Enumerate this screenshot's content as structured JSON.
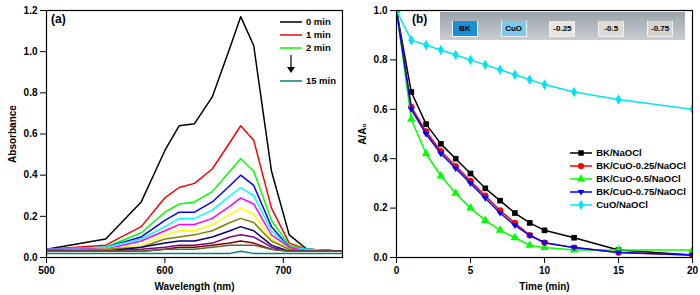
{
  "chart_data": [
    {
      "type": "line",
      "title": "(a)",
      "xlabel": "Wavelength (nm)",
      "ylabel": "Absorbance",
      "x": [
        500,
        550,
        580,
        600,
        612,
        625,
        640,
        655,
        664,
        675,
        690,
        705,
        720,
        750
      ],
      "xlim": [
        500,
        750
      ],
      "xticks": [
        500,
        600,
        700
      ],
      "ylim": [
        0,
        1.2
      ],
      "yticks": [
        {
          "value": 0,
          "label": "0.0"
        },
        0.2,
        0.4,
        0.6,
        0.8,
        {
          "value": 1,
          "label": "1.0"
        },
        1.2
      ],
      "legend": "top-right",
      "series": [
        {
          "name": "0 min",
          "color": "#000000",
          "values": [
            0.04,
            0.09,
            0.27,
            0.52,
            0.64,
            0.65,
            0.78,
            1.02,
            1.17,
            1.03,
            0.42,
            0.11,
            0.04,
            0.03
          ]
        },
        {
          "name": "1 min",
          "color": "#ff0000",
          "values": [
            0.04,
            0.06,
            0.15,
            0.29,
            0.34,
            0.36,
            0.43,
            0.56,
            0.64,
            0.57,
            0.24,
            0.07,
            0.04,
            0.03
          ]
        },
        {
          "name": "2 min",
          "color": "#00ff00",
          "values": [
            0.04,
            0.05,
            0.12,
            0.22,
            0.26,
            0.27,
            0.32,
            0.42,
            0.48,
            0.42,
            0.18,
            0.06,
            0.04,
            0.03
          ]
        },
        {
          "color": "#0000ff",
          "values": [
            0.04,
            0.05,
            0.1,
            0.18,
            0.22,
            0.22,
            0.27,
            0.35,
            0.4,
            0.35,
            0.15,
            0.05,
            0.04,
            0.03
          ]
        },
        {
          "color": "#00ffff",
          "values": [
            0.04,
            0.05,
            0.09,
            0.15,
            0.19,
            0.19,
            0.23,
            0.3,
            0.34,
            0.3,
            0.13,
            0.05,
            0.04,
            0.03
          ]
        },
        {
          "color": "#ff00ff",
          "values": [
            0.04,
            0.04,
            0.08,
            0.13,
            0.16,
            0.16,
            0.19,
            0.25,
            0.29,
            0.26,
            0.11,
            0.05,
            0.03,
            0.03
          ]
        },
        {
          "color": "#ffff00",
          "values": [
            0.03,
            0.04,
            0.06,
            0.11,
            0.13,
            0.13,
            0.16,
            0.21,
            0.24,
            0.21,
            0.09,
            0.04,
            0.03,
            0.03
          ]
        },
        {
          "color": "#808000",
          "values": [
            0.03,
            0.04,
            0.05,
            0.09,
            0.1,
            0.11,
            0.13,
            0.17,
            0.19,
            0.17,
            0.08,
            0.04,
            0.03,
            0.03
          ]
        },
        {
          "color": "#000080",
          "values": [
            0.03,
            0.03,
            0.05,
            0.07,
            0.08,
            0.08,
            0.1,
            0.13,
            0.15,
            0.13,
            0.06,
            0.03,
            0.03,
            0.03
          ]
        },
        {
          "color": "#800080",
          "values": [
            0.03,
            0.03,
            0.04,
            0.05,
            0.06,
            0.06,
            0.07,
            0.1,
            0.11,
            0.1,
            0.05,
            0.03,
            0.03,
            0.03
          ]
        },
        {
          "color": "#800000",
          "values": [
            0.03,
            0.03,
            0.03,
            0.04,
            0.05,
            0.05,
            0.06,
            0.07,
            0.08,
            0.07,
            0.04,
            0.03,
            0.03,
            0.03
          ]
        },
        {
          "color": "#556b2f",
          "values": [
            0.03,
            0.03,
            0.03,
            0.04,
            0.04,
            0.04,
            0.05,
            0.06,
            0.06,
            0.06,
            0.04,
            0.03,
            0.03,
            0.03
          ]
        },
        {
          "name": "15 min",
          "color": "#008080",
          "values": [
            0.02,
            0.02,
            0.02,
            0.02,
            0.02,
            0.02,
            0.02,
            0.02,
            0.03,
            0.02,
            0.02,
            0.02,
            0.02,
            0.02
          ]
        }
      ]
    },
    {
      "type": "line",
      "title": "(b)",
      "xlabel": "Time (min)",
      "ylabel": "A/A₀",
      "x": [
        0,
        1,
        2,
        3,
        4,
        5,
        6,
        7,
        8,
        9,
        10,
        12,
        15,
        20
      ],
      "xlim": [
        0,
        20
      ],
      "xticks": [
        0,
        5,
        10,
        15,
        20
      ],
      "ylim": [
        0,
        1
      ],
      "yticks": [
        {
          "value": 0,
          "label": "0.0"
        },
        0.2,
        0.4,
        0.6,
        0.8,
        {
          "value": 1,
          "label": "1.0"
        }
      ],
      "legend": "right",
      "annotations": [
        "BK",
        "CuO",
        "-0.25",
        "-0.5",
        "-0.75"
      ],
      "series": [
        {
          "name": "BK/NaOCl",
          "color": "#000000",
          "marker": "square",
          "values": [
            1,
            0.67,
            0.54,
            0.46,
            0.4,
            0.34,
            0.28,
            0.23,
            0.18,
            0.14,
            0.11,
            0.08,
            0.03,
            0.01
          ]
        },
        {
          "name": "BK/CuO-0.25/NaOCl",
          "color": "#ff0000",
          "marker": "circle",
          "values": [
            1,
            0.61,
            0.51,
            0.43,
            0.37,
            0.31,
            0.25,
            0.19,
            0.14,
            0.09,
            0.06,
            0.04,
            0.02,
            0.01
          ]
        },
        {
          "name": "BK/CuO-0.5/NaOCl",
          "color": "#00ff00",
          "marker": "triangle",
          "values": [
            1,
            0.56,
            0.42,
            0.33,
            0.26,
            0.2,
            0.15,
            0.11,
            0.08,
            0.05,
            0.04,
            0.03,
            0.03,
            0.03
          ]
        },
        {
          "name": "BK/CuO-0.75/NaOCl",
          "color": "#0000ff",
          "marker": "triangle-down",
          "values": [
            1,
            0.6,
            0.5,
            0.42,
            0.36,
            0.3,
            0.24,
            0.18,
            0.13,
            0.09,
            0.06,
            0.04,
            0.02,
            0.01
          ]
        },
        {
          "name": "CuO/NaOCl",
          "color": "#00e5ee",
          "marker": "diamond",
          "values": [
            1,
            0.88,
            0.86,
            0.84,
            0.82,
            0.8,
            0.78,
            0.76,
            0.74,
            0.72,
            0.7,
            0.67,
            0.64,
            0.6
          ]
        }
      ]
    }
  ]
}
